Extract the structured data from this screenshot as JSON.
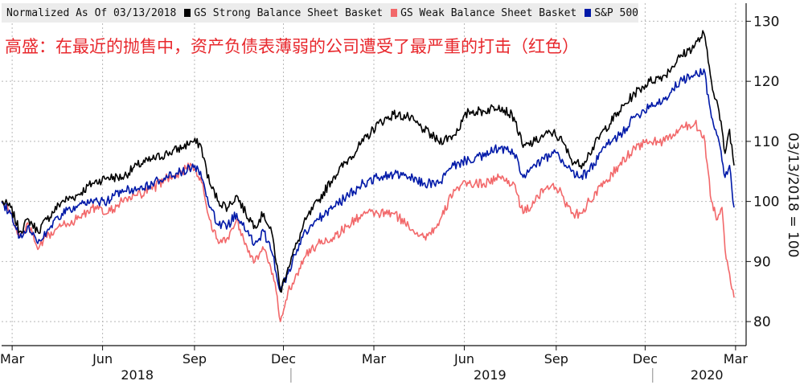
{
  "chart_data": {
    "type": "line",
    "title": "Normalized As Of 03/13/2018",
    "annotation": "高盛：在最近的抛售中，资产负债表薄弱的公司遭受了最严重的打击（红色）",
    "ylabel": "03/13/2018 = 100",
    "ylim": [
      76,
      133
    ],
    "yticks": [
      80,
      90,
      100,
      110,
      120,
      130
    ],
    "xticks": [
      {
        "label": "Mar",
        "t": 0.35
      },
      {
        "label": "Jun",
        "t": 3.35
      },
      {
        "label": "Sep",
        "t": 6.4
      },
      {
        "label": "Dec",
        "t": 9.35
      },
      {
        "label": "Mar",
        "t": 12.35
      },
      {
        "label": "Jun",
        "t": 15.35
      },
      {
        "label": "Sep",
        "t": 18.4
      },
      {
        "label": "Dec",
        "t": 21.35
      },
      {
        "label": "Mar",
        "t": 24.35
      }
    ],
    "years": [
      {
        "label": "2018",
        "t": 4.5
      },
      {
        "label": "2019",
        "t": 16.2
      },
      {
        "label": "2020",
        "t": 23.4
      }
    ],
    "year_dividers": [
      9.6,
      21.6
    ],
    "x_t_range": [
      0,
      24.7
    ],
    "grid": true,
    "legend_position": "top-left",
    "series": [
      {
        "name": "GS Strong Balance Sheet Basket",
        "color": "#000000",
        "points": [
          [
            0,
            100
          ],
          [
            0.3,
            99
          ],
          [
            0.6,
            95
          ],
          [
            0.9,
            97
          ],
          [
            1.2,
            95
          ],
          [
            1.5,
            97
          ],
          [
            2.0,
            100
          ],
          [
            2.5,
            101
          ],
          [
            3.0,
            103
          ],
          [
            3.5,
            104
          ],
          [
            4.0,
            104
          ],
          [
            4.5,
            106
          ],
          [
            5.0,
            107
          ],
          [
            5.5,
            108
          ],
          [
            6.0,
            109
          ],
          [
            6.3,
            110
          ],
          [
            6.6,
            109.5
          ],
          [
            6.9,
            103
          ],
          [
            7.2,
            100
          ],
          [
            7.5,
            99
          ],
          [
            7.8,
            101
          ],
          [
            8.1,
            98
          ],
          [
            8.4,
            96
          ],
          [
            8.7,
            98
          ],
          [
            9.0,
            94
          ],
          [
            9.25,
            85
          ],
          [
            9.5,
            89
          ],
          [
            9.8,
            93
          ],
          [
            10.1,
            97
          ],
          [
            10.5,
            100
          ],
          [
            11,
            104
          ],
          [
            11.5,
            107
          ],
          [
            12,
            110
          ],
          [
            12.5,
            113
          ],
          [
            13,
            114.5
          ],
          [
            13.5,
            114
          ],
          [
            14,
            112
          ],
          [
            14.5,
            110
          ],
          [
            15,
            111
          ],
          [
            15.5,
            115
          ],
          [
            16,
            115
          ],
          [
            16.5,
            116
          ],
          [
            17,
            114
          ],
          [
            17.3,
            109
          ],
          [
            17.7,
            110
          ],
          [
            18,
            111
          ],
          [
            18.3,
            111.5
          ],
          [
            18.6,
            110
          ],
          [
            18.9,
            107
          ],
          [
            19.2,
            106
          ],
          [
            19.5,
            108
          ],
          [
            20,
            112
          ],
          [
            20.5,
            115
          ],
          [
            21,
            118
          ],
          [
            21.5,
            120
          ],
          [
            22,
            121
          ],
          [
            22.5,
            124
          ],
          [
            23,
            126
          ],
          [
            23.3,
            128
          ],
          [
            23.55,
            120
          ],
          [
            23.8,
            115
          ],
          [
            24.0,
            108
          ],
          [
            24.15,
            112
          ],
          [
            24.3,
            106
          ]
        ]
      },
      {
        "name": "GS Weak Balance Sheet Basket",
        "color": "#f2686a",
        "points": [
          [
            0,
            100
          ],
          [
            0.3,
            98
          ],
          [
            0.6,
            94
          ],
          [
            0.9,
            96
          ],
          [
            1.2,
            92
          ],
          [
            1.5,
            94
          ],
          [
            2.0,
            96
          ],
          [
            2.5,
            97
          ],
          [
            3.0,
            99
          ],
          [
            3.5,
            98
          ],
          [
            4.0,
            100
          ],
          [
            4.5,
            101
          ],
          [
            5.0,
            102
          ],
          [
            5.5,
            104
          ],
          [
            6.0,
            105
          ],
          [
            6.3,
            106
          ],
          [
            6.6,
            104
          ],
          [
            6.9,
            97
          ],
          [
            7.2,
            93
          ],
          [
            7.5,
            94
          ],
          [
            7.8,
            97
          ],
          [
            8.1,
            93
          ],
          [
            8.4,
            90
          ],
          [
            8.7,
            92
          ],
          [
            9.0,
            88
          ],
          [
            9.25,
            80
          ],
          [
            9.5,
            85
          ],
          [
            9.8,
            88
          ],
          [
            10.1,
            91
          ],
          [
            10.5,
            93
          ],
          [
            11,
            94
          ],
          [
            11.5,
            96
          ],
          [
            12,
            98
          ],
          [
            12.5,
            98
          ],
          [
            13,
            98
          ],
          [
            13.5,
            96
          ],
          [
            14,
            94
          ],
          [
            14.5,
            96
          ],
          [
            15,
            102
          ],
          [
            15.5,
            103
          ],
          [
            16,
            103
          ],
          [
            16.5,
            104
          ],
          [
            17,
            103
          ],
          [
            17.3,
            98
          ],
          [
            17.7,
            100
          ],
          [
            18,
            102
          ],
          [
            18.3,
            103
          ],
          [
            18.6,
            101
          ],
          [
            18.9,
            98
          ],
          [
            19.2,
            98
          ],
          [
            19.5,
            100
          ],
          [
            20,
            103
          ],
          [
            20.5,
            106
          ],
          [
            21,
            109
          ],
          [
            21.5,
            110
          ],
          [
            22,
            110
          ],
          [
            22.5,
            112
          ],
          [
            23,
            113
          ],
          [
            23.3,
            111
          ],
          [
            23.55,
            100
          ],
          [
            23.75,
            97
          ],
          [
            23.9,
            99
          ],
          [
            24.0,
            92
          ],
          [
            24.15,
            88
          ],
          [
            24.3,
            84
          ]
        ]
      },
      {
        "name": "S&P 500",
        "color": "#0019a8",
        "points": [
          [
            0,
            100
          ],
          [
            0.3,
            98
          ],
          [
            0.6,
            94
          ],
          [
            0.9,
            96
          ],
          [
            1.2,
            93
          ],
          [
            1.5,
            95
          ],
          [
            2.0,
            98
          ],
          [
            2.5,
            99
          ],
          [
            3.0,
            100
          ],
          [
            3.5,
            100
          ],
          [
            4.0,
            102
          ],
          [
            4.5,
            102
          ],
          [
            5.0,
            103
          ],
          [
            5.5,
            104
          ],
          [
            6.0,
            105
          ],
          [
            6.3,
            105.5
          ],
          [
            6.6,
            105
          ],
          [
            6.9,
            99
          ],
          [
            7.2,
            96
          ],
          [
            7.5,
            96
          ],
          [
            7.8,
            98
          ],
          [
            8.1,
            95
          ],
          [
            8.4,
            93
          ],
          [
            8.7,
            95
          ],
          [
            9.0,
            91
          ],
          [
            9.25,
            85
          ],
          [
            9.5,
            88
          ],
          [
            9.8,
            92
          ],
          [
            10.1,
            95
          ],
          [
            10.5,
            97
          ],
          [
            11,
            99
          ],
          [
            11.5,
            101
          ],
          [
            12,
            103
          ],
          [
            12.5,
            104
          ],
          [
            13,
            104.5
          ],
          [
            13.5,
            104
          ],
          [
            14,
            103
          ],
          [
            14.5,
            103
          ],
          [
            15,
            106
          ],
          [
            15.5,
            107
          ],
          [
            16,
            107.5
          ],
          [
            16.5,
            109
          ],
          [
            17,
            108
          ],
          [
            17.3,
            104
          ],
          [
            17.7,
            106
          ],
          [
            18,
            107
          ],
          [
            18.3,
            108
          ],
          [
            18.6,
            107
          ],
          [
            18.9,
            105
          ],
          [
            19.2,
            104
          ],
          [
            19.5,
            105
          ],
          [
            20,
            109
          ],
          [
            20.5,
            111
          ],
          [
            21,
            114
          ],
          [
            21.5,
            116
          ],
          [
            22,
            117
          ],
          [
            22.5,
            120
          ],
          [
            23,
            121
          ],
          [
            23.3,
            122
          ],
          [
            23.55,
            114
          ],
          [
            23.8,
            110
          ],
          [
            24.0,
            104
          ],
          [
            24.15,
            106
          ],
          [
            24.3,
            99
          ]
        ]
      }
    ]
  }
}
